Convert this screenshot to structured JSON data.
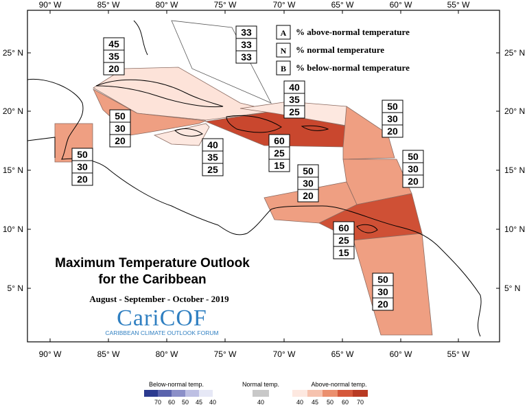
{
  "map": {
    "title_line1": "Maximum Temperature Outlook",
    "title_line2": "for the Caribbean",
    "period": "August - September - October - 2019",
    "logo_text": "CariCOF",
    "logo_subtitle": "CARIBBEAN CLIMATE OUTLOOK FORUM",
    "lon_labels": [
      "90° W",
      "85° W",
      "80° W",
      "75° W",
      "70° W",
      "65° W",
      "60° W",
      "55° W"
    ],
    "lat_labels": [
      "25° N",
      "20° N",
      "15° N",
      "10° N",
      "5° N"
    ],
    "key": [
      {
        "letter": "A",
        "text": "% above-normal temperature"
      },
      {
        "letter": "N",
        "text": "% normal temperature"
      },
      {
        "letter": "B",
        "text": "% below-normal temperature"
      }
    ],
    "forecast_boxes": [
      {
        "id": "bahamas",
        "values": [
          "33",
          "33",
          "33"
        ]
      },
      {
        "id": "cuba",
        "values": [
          "45",
          "35",
          "20"
        ]
      },
      {
        "id": "cayman",
        "values": [
          "50",
          "30",
          "20"
        ]
      },
      {
        "id": "belize",
        "values": [
          "50",
          "30",
          "20"
        ]
      },
      {
        "id": "jamaica",
        "values": [
          "40",
          "35",
          "25"
        ]
      },
      {
        "id": "hispaniola-pr",
        "values": [
          "60",
          "25",
          "15"
        ]
      },
      {
        "id": "turks-caicos",
        "values": [
          "40",
          "35",
          "25"
        ]
      },
      {
        "id": "leewards",
        "values": [
          "50",
          "30",
          "20"
        ]
      },
      {
        "id": "windwards",
        "values": [
          "50",
          "30",
          "20"
        ]
      },
      {
        "id": "abc-islands",
        "values": [
          "50",
          "30",
          "20"
        ]
      },
      {
        "id": "trinidad",
        "values": [
          "60",
          "25",
          "15"
        ]
      },
      {
        "id": "guianas",
        "values": [
          "50",
          "30",
          "20"
        ]
      }
    ],
    "legend": {
      "below_title": "Below-normal temp.",
      "below_ticks": [
        "70",
        "60",
        "50",
        "45",
        "40"
      ],
      "below_colors": [
        "#2b3a8f",
        "#5a63ad",
        "#8b8fc8",
        "#bdbfe3",
        "#e6e8f6"
      ],
      "normal_title": "Normal temp.",
      "normal_tick": "40",
      "normal_color": "#c8c8c8",
      "above_title": "Above-normal temp.",
      "above_ticks": [
        "40",
        "45",
        "50",
        "60",
        "70"
      ],
      "above_colors": [
        "#fde8e0",
        "#f6c2ae",
        "#eb8f6e",
        "#d5583b",
        "#b93a23"
      ]
    }
  }
}
